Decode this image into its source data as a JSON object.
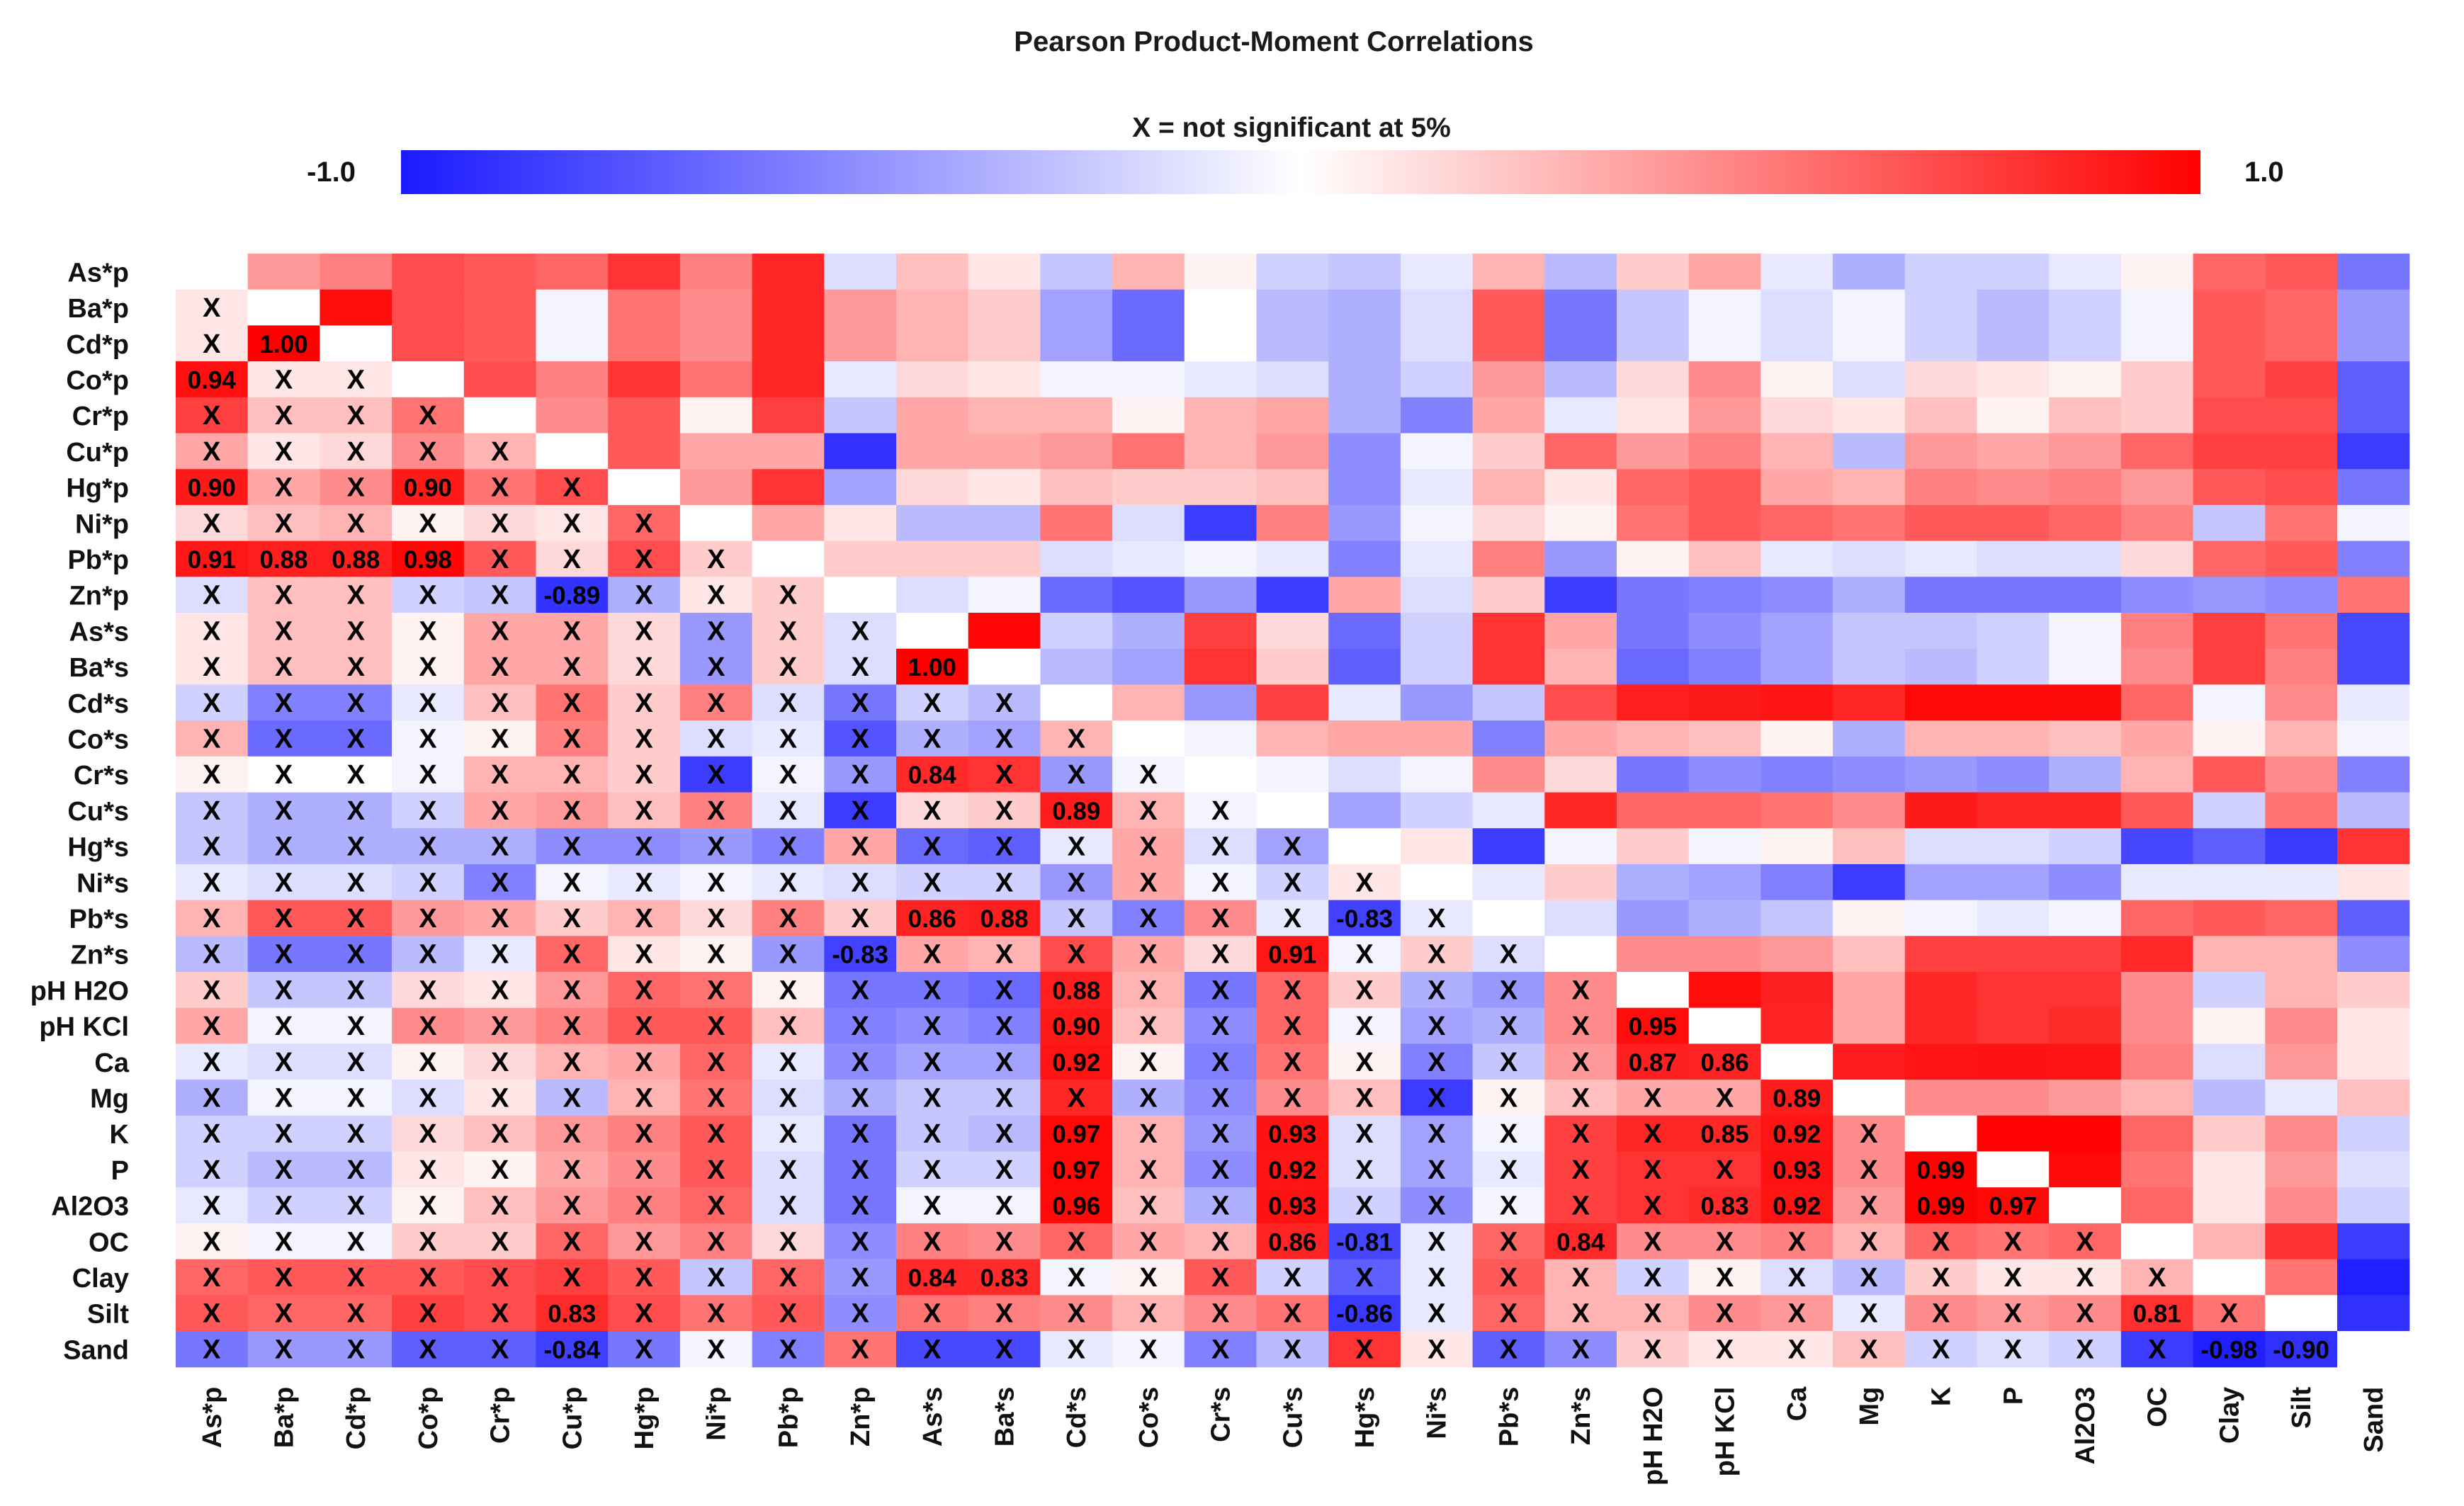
{
  "chart_data": {
    "type": "heatmap",
    "title": "Pearson Product-Moment Correlations",
    "legend": {
      "note": "X = not significant at 5%",
      "min_label": "-1.0",
      "max_label": "1.0",
      "min": -1.0,
      "max": 1.0,
      "low_color": "#1a1aff",
      "mid_color": "#ffffff",
      "high_color": "#ff0000",
      "placement": "top"
    },
    "variables": [
      "As*p",
      "Ba*p",
      "Cd*p",
      "Co*p",
      "Cr*p",
      "Cu*p",
      "Hg*p",
      "Ni*p",
      "Pb*p",
      "Zn*p",
      "As*s",
      "Ba*s",
      "Cd*s",
      "Co*s",
      "Cr*s",
      "Cu*s",
      "Hg*s",
      "Ni*s",
      "Pb*s",
      "Zn*s",
      "pH H2O",
      "pH KCl",
      "Ca",
      "Mg",
      "K",
      "P",
      "Al2O3",
      "OC",
      "Clay",
      "Silt",
      "Sand"
    ],
    "significant_labels": [
      {
        "row": 2,
        "col": 1,
        "text": "1.00"
      },
      {
        "row": 3,
        "col": 0,
        "text": "0.94"
      },
      {
        "row": 6,
        "col": 0,
        "text": "0.90"
      },
      {
        "row": 6,
        "col": 3,
        "text": "0.90"
      },
      {
        "row": 8,
        "col": 0,
        "text": "0.91"
      },
      {
        "row": 8,
        "col": 1,
        "text": "0.88"
      },
      {
        "row": 8,
        "col": 2,
        "text": "0.88"
      },
      {
        "row": 8,
        "col": 3,
        "text": "0.98"
      },
      {
        "row": 9,
        "col": 5,
        "text": "-0.89"
      },
      {
        "row": 11,
        "col": 10,
        "text": "1.00"
      },
      {
        "row": 14,
        "col": 10,
        "text": "0.84"
      },
      {
        "row": 15,
        "col": 12,
        "text": "0.89"
      },
      {
        "row": 18,
        "col": 10,
        "text": "0.86"
      },
      {
        "row": 18,
        "col": 11,
        "text": "0.88"
      },
      {
        "row": 18,
        "col": 16,
        "text": "-0.83"
      },
      {
        "row": 19,
        "col": 9,
        "text": "-0.83"
      },
      {
        "row": 19,
        "col": 15,
        "text": "0.91"
      },
      {
        "row": 20,
        "col": 12,
        "text": "0.88"
      },
      {
        "row": 21,
        "col": 12,
        "text": "0.90"
      },
      {
        "row": 21,
        "col": 20,
        "text": "0.95"
      },
      {
        "row": 22,
        "col": 12,
        "text": "0.92"
      },
      {
        "row": 22,
        "col": 20,
        "text": "0.87"
      },
      {
        "row": 22,
        "col": 21,
        "text": "0.86"
      },
      {
        "row": 23,
        "col": 22,
        "text": "0.89"
      },
      {
        "row": 24,
        "col": 12,
        "text": "0.97"
      },
      {
        "row": 24,
        "col": 15,
        "text": "0.93"
      },
      {
        "row": 24,
        "col": 21,
        "text": "0.85"
      },
      {
        "row": 24,
        "col": 22,
        "text": "0.92"
      },
      {
        "row": 25,
        "col": 12,
        "text": "0.97"
      },
      {
        "row": 25,
        "col": 15,
        "text": "0.92"
      },
      {
        "row": 25,
        "col": 22,
        "text": "0.93"
      },
      {
        "row": 25,
        "col": 24,
        "text": "0.99"
      },
      {
        "row": 26,
        "col": 12,
        "text": "0.96"
      },
      {
        "row": 26,
        "col": 15,
        "text": "0.93"
      },
      {
        "row": 26,
        "col": 21,
        "text": "0.83"
      },
      {
        "row": 26,
        "col": 22,
        "text": "0.92"
      },
      {
        "row": 26,
        "col": 24,
        "text": "0.99"
      },
      {
        "row": 26,
        "col": 25,
        "text": "0.97"
      },
      {
        "row": 27,
        "col": 15,
        "text": "0.86"
      },
      {
        "row": 27,
        "col": 16,
        "text": "-0.81"
      },
      {
        "row": 27,
        "col": 19,
        "text": "0.84"
      },
      {
        "row": 28,
        "col": 10,
        "text": "0.84"
      },
      {
        "row": 28,
        "col": 11,
        "text": "0.83"
      },
      {
        "row": 29,
        "col": 5,
        "text": "0.83"
      },
      {
        "row": 29,
        "col": 16,
        "text": "-0.86"
      },
      {
        "row": 29,
        "col": 27,
        "text": "0.81"
      },
      {
        "row": 30,
        "col": 5,
        "text": "-0.84"
      },
      {
        "row": 30,
        "col": 28,
        "text": "-0.98"
      },
      {
        "row": 30,
        "col": 29,
        "text": "-0.90"
      }
    ],
    "matrix_rows": [
      "0 .4 .5 .7 .65 .6 .8 .5 .85 -.15 .25 .1 -.25 .3 .05 -.2 -.25 -.1 .3 -.3 .2 .35 -.1 -.35 -.2 -.2 -.1 .05 .6 .65 -.6",
      ".1 0 .95 .7 .65 -.05 .55 .45 .85 .4 .3 .2 -.4 -.65 0 -.3 -.35 -.15 .65 -.6 -.25 -.05 -.15 -.05 -.2 -.3 -.2 -.05 .65 .6 -.45",
      ".1 1 0 .7 .65 -.05 .55 .45 .85 .4 .3 .2 -.4 -.65 0 -.3 -.35 -.15 .65 -.6 -.25 -.05 -.15 -.05 -.2 -.3 -.2 -.05 .65 .6 -.45",
      ".94 .1 .1 0 .7 .5 .8 .55 .85 -.1 .15 .1 -.05 -.05 -.1 -.15 -.35 -.2 .4 -.3 .15 .45 .05 -.15 .15 .1 .05 .2 .65 .75 -.7",
      ".75 .25 .25 .55 0 .45 .65 .05 .75 -.25 .35 .3 .3 .05 .3 .35 -.35 -.55 .35 -.1 .1 .4 .15 .1 .25 .05 .25 .2 .7 .7 -.7",
      ".35 .1 .15 .45 .3 0 .65 .35 .35 -.9 .35 .35 .4 .55 .3 .4 -.5 -.05 .2 .6 .4 .5 .3 -.3 .4 .35 .4 .6 .75 .75 -.85",
      ".9 .35 .45 .9 .55 .7 0 .4 .8 -.4 .15 .1 .25 .2 .2 .25 -.5 -.1 .3 .1 .6 .65 .35 .3 .5 .45 .5 .4 .65 .7 -.6",
      ".15 .25 .3 .05 .15 .1 .6 0 .35 .1 -.3 -.3 .55 -.15 -.85 .5 -.45 -.05 .15 .05 .55 .65 .6 .55 .65 .65 .6 .5 -.25 .55 -.05",
      ".91 .88 .88 .98 .65 .15 .7 .2 0 .2 .2 .2 -.15 -.1 -.05 -.1 -.55 -.1 .5 -.45 .05 .25 -.1 -.15 -.1 -.15 -.15 .15 .6 .65 -.55",
      "-.15 .25 .25 -.2 -.25 -.89 -.35 .1 .2 0 -.15 -.05 -.65 -.75 -.45 -.85 .35 -.15 .2 -.85 -.6 -.55 -.5 -.35 -.6 -.6 -.6 -.5 -.45 -.5 .55",
      ".1 .25 .25 .05 .35 .35 .15 -.45 .2 -.15 0 .98 -.2 -.35 .75 .15 -.65 -.2 .8 .35 -.6 -.5 -.4 -.25 -.25 -.2 -.05 .5 .75 .55 -.8",
      ".1 .25 .25 .05 .35 .35 .15 -.45 .2 -.15 1 0 -.3 -.4 .8 .2 -.7 -.2 .8 .3 -.65 -.55 -.4 -.25 -.3 -.2 -.05 .45 .75 .5 -.8",
      "-.2 -.55 -.55 -.1 .25 .55 .2 .5 -.15 -.6 -.2 -.3 0 .3 -.45 .75 -.1 -.45 -.25 .7 .88 .9 .92 .85 .97 .97 .96 .6 -.05 .45 -.1",
      ".3 -.65 -.65 -.05 .05 .5 .2 -.15 -.1 -.75 -.35 -.4 .3 0 -.05 .3 .35 .35 -.55 .35 .3 .25 .05 -.35 .3 .3 .25 .35 .05 .3 -.05",
      ".05 0 0 -.05 .3 .3 .2 -.85 -.05 -.45 .84 .8 -.45 -.05 0 -.05 -.15 -.05 .45 .15 -.6 -.5 -.55 -.5 -.45 -.5 -.35 .3 .65 .45 -.55",
      "-.25 -.35 -.35 -.2 .35 .4 .25 .5 -.1 -.85 .15 .2 .89 .3 -.05 0 -.4 -.2 -.1 .85 .6 .6 .55 .45 .9 .85 .85 .65 -.2 .55 -.3",
      "-.25 -.35 -.35 -.35 -.35 -.5 -.5 -.45 -.55 .35 -.65 -.7 -.1 .35 -.15 -.4 0 .1 -.85 -.05 .2 -.05 .05 .25 -.15 -.15 -.2 -.81 -.7 -.86 .8",
      "-.1 -.15 -.15 -.2 -.55 -.05 -.1 -.05 -.1 -.15 -.2 -.2 -.45 .35 -.05 -.2 .1 0 -.1 .2 -.35 -.4 -.55 -.85 -.4 -.4 -.5 -.1 -.1 -.1 .1",
      ".3 .65 .65 .4 .35 .2 .3 .15 .5 .2 .86 .88 -.25 -.55 .45 -.1 -.83 -.1 0 -.15 -.45 -.35 -.25 .05 -.05 -.1 -.05 .6 .65 .6 -.7",
      "-.3 -.6 -.6 -.3 -.1 .6 .1 .05 -.45 -.83 .35 .3 .7 .35 .15 .91 -.05 .2 -.15 0 .45 .45 .4 .25 .75 .75 .75 .84 .3 .3 -.5",
      ".2 -.25 -.25 .15 .1 .4 .6 .55 .05 -.6 -.6 -.65 .88 .3 -.6 .6 .2 -.35 -.45 .45 0 .95 .87 .35 .85 .8 .8 .45 -.2 .3 .2",
      ".35 -.05 -.05 .45 .4 .5 .65 .65 .25 -.55 -.5 -.55 .9 .25 -.5 .6 -.05 -.4 -.35 .45 .95 0 .86 .35 .85 .8 .83 .45 .05 .45 .1",
      "-.1 -.15 -.15 .05 .15 .3 .35 .6 -.1 -.5 -.4 -.4 .92 .05 -.55 .55 .05 -.55 -.25 .4 .87 .86 0 .89 .92 .93 .92 .5 -.15 .4 .1",
      "-.35 -.05 -.05 -.15 .1 -.3 .3 .55 -.15 -.35 -.25 -.25 .85 -.35 -.5 .45 .25 -.85 .05 .25 .35 .35 .89 0 .45 .45 .4 .3 -.3 -.1 .25",
      "-.2 -.2 -.2 .15 .25 .4 .5 .65 -.1 -.6 -.25 -.3 .97 .3 -.45 .93 -.15 -.4 -.05 .75 .85 .85 .92 .45 0 .99 .99 .6 .2 .45 -.2",
      "-.2 -.3 -.3 .1 .05 .35 .45 .65 -.15 -.6 -.2 -.2 .97 .3 -.5 .92 -.15 -.4 -.1 .75 .8 .8 .93 .45 .99 0 .97 .55 .1 .4 -.15",
      "-.1 -.2 -.2 .05 .25 .4 .5 .6 -.15 -.6 -.05 -.05 .96 .25 -.35 .93 -.2 -.5 -.05 .75 .8 .83 .92 .4 .99 .97 0 .6 .1 .45 -.2",
      ".05 -.05 -.05 .2 .2 .6 .4 .5 .15 -.5 .5 .45 .6 .35 .3 .86 -.81 -.1 .6 .84 .45 .45 .5 .3 .6 .55 .6 0 .3 .81 -.85",
      ".6 .65 .65 .65 .7 .75 .65 -.25 .6 -.45 .84 .83 -.05 .05 .65 -.2 -.7 -.1 .65 .3 -.2 .05 -.15 -.3 .2 .1 .1 .3 0 .55 -.98",
      ".65 .6 .6 .75 .7 .83 .7 .55 .65 -.5 .55 .5 .45 .3 .45 .55 -.86 -.1 .6 .3 .3 .45 .4 -.1 .45 .4 .45 .81 .55 0 -.9",
      "-.6 -.45 -.45 -.7 -.7 -.84 -.6 -.05 -.55 .55 -.8 -.8 -.1 -.05 -.55 -.3 .8 .1 -.7 -.5 .2 .1 .1 .25 -.2 -.15 -.2 -.85 -.98 -.9 0"
    ]
  }
}
